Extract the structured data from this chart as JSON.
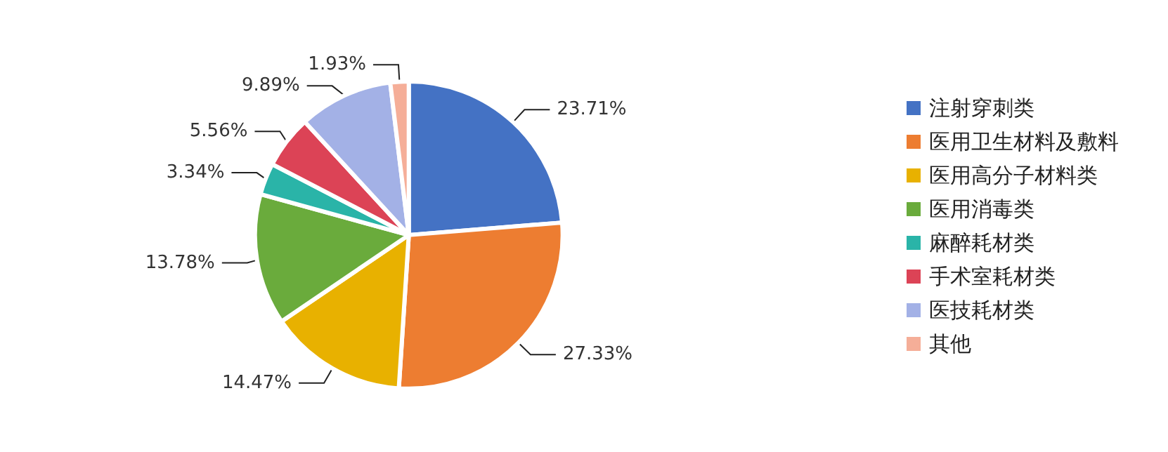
{
  "chart_data": {
    "type": "pie",
    "categories": [
      "注射穿刺类",
      "医用卫生材料及敷料",
      "医用高分子材料类",
      "医用消毒类",
      "麻醉耗材类",
      "手术室耗材类",
      "医技耗材类",
      "其他"
    ],
    "values": [
      23.71,
      27.33,
      14.47,
      13.78,
      3.34,
      5.56,
      9.89,
      1.93
    ],
    "value_labels": [
      "23.71%",
      "27.33%",
      "14.47%",
      "13.78%",
      "3.34%",
      "5.56%",
      "9.89%",
      "1.93%"
    ],
    "colors": [
      "#4472c4",
      "#ed7d31",
      "#e8b100",
      "#6aab3c",
      "#2ab4a8",
      "#dc4356",
      "#a3b1e6",
      "#f5ae98"
    ],
    "legend": "right"
  }
}
